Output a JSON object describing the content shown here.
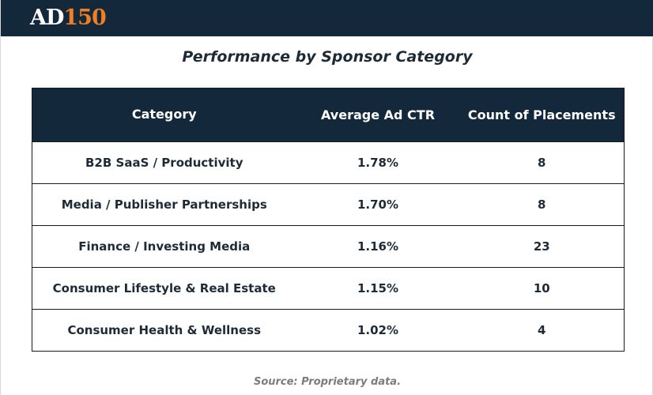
{
  "header": {
    "logo_text_a": "AD",
    "logo_text_b": "150",
    "bar_color": "#13283a",
    "accent_color": "#f07e22"
  },
  "chart_data": {
    "type": "table",
    "title": "Performance by Sponsor Category",
    "columns": [
      "Category",
      "Average Ad CTR",
      "Count of Placements"
    ],
    "rows": [
      [
        "B2B SaaS / Productivity",
        "1.78%",
        "8"
      ],
      [
        "Media / Publisher Partnerships",
        "1.70%",
        "8"
      ],
      [
        "Finance / Investing Media",
        "1.16%",
        "23"
      ],
      [
        "Consumer Lifestyle & Real Estate",
        "1.15%",
        "10"
      ],
      [
        "Consumer Health & Wellness",
        "1.02%",
        "4"
      ]
    ],
    "categories": [
      "B2B SaaS / Productivity",
      "Media / Publisher Partnerships",
      "Finance / Investing Media",
      "Consumer Lifestyle & Real Estate",
      "Consumer Health & Wellness"
    ],
    "series": [
      {
        "name": "Average Ad CTR",
        "values": [
          1.78,
          1.7,
          1.16,
          1.15,
          1.02
        ]
      },
      {
        "name": "Count of Placements",
        "values": [
          8,
          8,
          23,
          10,
          4
        ]
      }
    ],
    "source": "Source: Proprietary data."
  }
}
